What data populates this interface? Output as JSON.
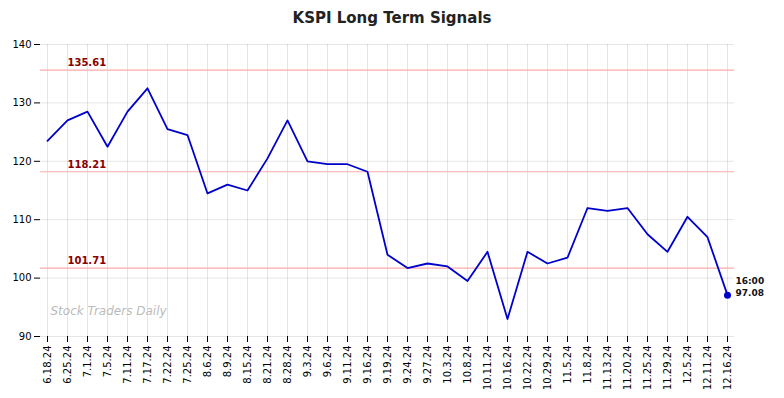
{
  "chart_data": {
    "type": "line",
    "title": "KSPI Long Term Signals",
    "categories": [
      "6.18.24",
      "6.25.24",
      "7.1.24",
      "7.5.24",
      "7.11.24",
      "7.17.24",
      "7.22.24",
      "7.25.24",
      "8.6.24",
      "8.9.24",
      "8.15.24",
      "8.21.24",
      "8.28.24",
      "9.3.24",
      "9.6.24",
      "9.11.24",
      "9.16.24",
      "9.19.24",
      "9.24.24",
      "9.27.24",
      "10.3.24",
      "10.8.24",
      "10.11.24",
      "10.16.24",
      "10.22.24",
      "10.29.24",
      "11.5.24",
      "11.8.24",
      "11.13.24",
      "11.20.24",
      "11.25.24",
      "11.29.24",
      "12.5.24",
      "12.11.24",
      "12.16.24"
    ],
    "values": [
      123.5,
      127.0,
      128.5,
      122.5,
      128.5,
      132.5,
      125.5,
      124.5,
      114.5,
      116.0,
      115.0,
      120.5,
      127.0,
      120.0,
      119.5,
      119.5,
      118.21,
      104.0,
      101.71,
      102.5,
      102.0,
      99.5,
      104.5,
      93.0,
      104.5,
      102.5,
      103.5,
      112.0,
      111.5,
      112.0,
      107.5,
      104.5,
      110.5,
      107.0,
      97.08
    ],
    "color": "#0000cc",
    "hlines": [
      {
        "value": 135.61,
        "color": "#ffaaaa"
      },
      {
        "value": 118.21,
        "color": "#ffaaaa"
      },
      {
        "value": 101.71,
        "color": "#ffaaaa"
      }
    ],
    "annotations": [
      "16:00",
      "Stock Traders Daily"
    ],
    "ylim": [
      90,
      140
    ],
    "yticks": [
      90,
      100,
      110,
      120,
      130,
      140
    ],
    "grid": true
  }
}
